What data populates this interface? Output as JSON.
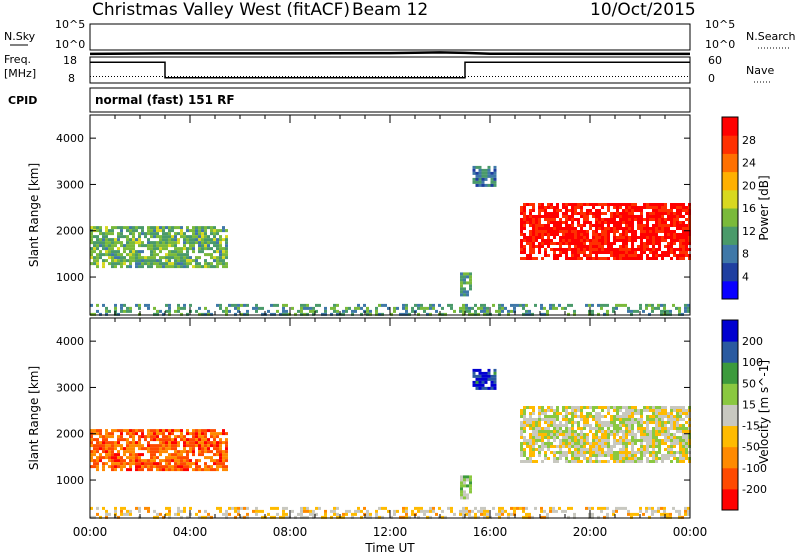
{
  "header": {
    "title": "Christmas Valley West (fitACF)",
    "beam": "Beam 12",
    "date": "10/Oct/2015"
  },
  "panels": {
    "nsky_label": "N.Sky",
    "nsky_ticks": [
      "10^5",
      "10^0"
    ],
    "nsearch_label": "N.Search",
    "nsearch_ticks": [
      "10^5",
      "10^0"
    ],
    "freq_label_1": "Freq.",
    "freq_label_2": "[MHz]",
    "freq_ticks": [
      "18",
      "8"
    ],
    "nave_label": "Nave",
    "nave_ticks": [
      "60",
      "0"
    ],
    "cpid_label": "CPID",
    "cpid_value": "normal (fast) 151 RF"
  },
  "colors": {
    "power_scale": [
      "#0a00ff",
      "#1f3fa0",
      "#3f78a8",
      "#4a9a6a",
      "#7aba3a",
      "#d8d820",
      "#ffb000",
      "#ff7000",
      "#ff3000",
      "#ff0000"
    ],
    "velocity_scale": [
      "#ff0000",
      "#ff4a00",
      "#ff8a00",
      "#ffbb00",
      "#c8c8c0",
      "#8ac840",
      "#3c9a3c",
      "#2a5aa0",
      "#0000d0"
    ]
  },
  "chart_data": [
    {
      "type": "line",
      "name": "N.Sky / N.Search",
      "x": [
        0,
        3,
        8,
        12,
        14,
        15,
        16,
        20,
        24
      ],
      "y_log10_nsky": [
        0.4,
        0.5,
        0.5,
        0.55,
        0.7,
        0.6,
        0.45,
        0.4,
        0.4
      ],
      "yticks": [
        "10^5",
        "10^0"
      ]
    },
    {
      "type": "line",
      "name": "Freq / Nave",
      "x": [
        0,
        3,
        3,
        15,
        15,
        24
      ],
      "freq_MHz": [
        16,
        16,
        10,
        10,
        16,
        16
      ],
      "nave": [
        15,
        15,
        15,
        15,
        15,
        15
      ],
      "freq_ylim": [
        8,
        18
      ],
      "nave_ylim": [
        0,
        60
      ]
    },
    {
      "type": "heatmap",
      "title": "",
      "ylabel": "Slant Range [km]",
      "colorbar_label": "Power [dB]",
      "colorbar_ticks": [
        "28",
        "24",
        "20",
        "16",
        "12",
        "8",
        "4"
      ],
      "zlim": [
        0,
        30
      ],
      "yticks": [
        "4000",
        "3000",
        "2000",
        "1000"
      ],
      "ylim": [
        180,
        4500
      ],
      "regions_time_range_km_value": [
        [
          0.0,
          5.5,
          1200,
          2100,
          12
        ],
        [
          14.8,
          15.2,
          600,
          1100,
          10
        ],
        [
          15.3,
          16.2,
          3000,
          3400,
          8
        ],
        [
          17.2,
          24.0,
          1400,
          2600,
          28
        ],
        [
          0.0,
          24.0,
          180,
          420,
          10
        ]
      ]
    },
    {
      "type": "heatmap",
      "title": "",
      "ylabel": "Slant Range [km]",
      "xlabel": "Time UT",
      "colorbar_label": "Velocity [m s^-1]",
      "colorbar_ticks": [
        "200",
        "100",
        "50",
        "15",
        "-15",
        "-50",
        "-100",
        "-200"
      ],
      "zlim": [
        -250,
        250
      ],
      "yticks": [
        "4000",
        "3000",
        "2000",
        "1000"
      ],
      "xticks": [
        "00:00",
        "04:00",
        "08:00",
        "12:00",
        "16:00",
        "20:00",
        "00:00"
      ],
      "ylim": [
        180,
        4500
      ],
      "regions_time_range_km_value": [
        [
          0.0,
          5.5,
          1200,
          2100,
          -150
        ],
        [
          14.8,
          15.2,
          600,
          1100,
          40
        ],
        [
          15.3,
          16.2,
          3000,
          3400,
          200
        ],
        [
          17.2,
          24.0,
          1400,
          2600,
          0
        ],
        [
          0.0,
          24.0,
          180,
          420,
          -40
        ]
      ]
    }
  ]
}
